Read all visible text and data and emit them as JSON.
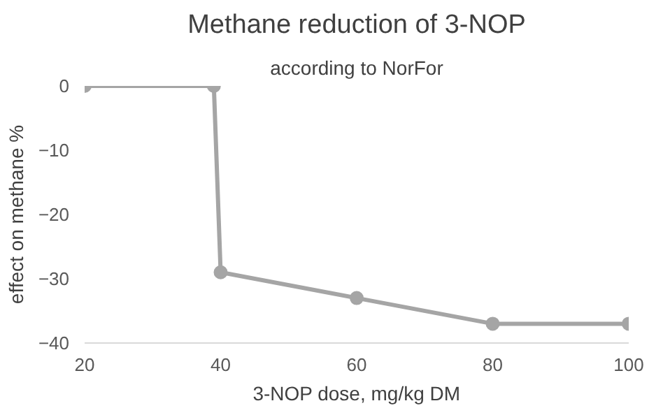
{
  "chart_data": {
    "type": "line",
    "title": "Methane reduction of 3-NOP",
    "subtitle": "according to NorFor",
    "xlabel": "3-NOP dose, mg/kg DM",
    "ylabel": "effect on methane %",
    "x": [
      20,
      39,
      40,
      60,
      80,
      100
    ],
    "series": [
      {
        "color": "#a5a5a5",
        "values": [
          0,
          0,
          -29,
          -33,
          -37,
          -37
        ]
      }
    ],
    "xlim": [
      20,
      100
    ],
    "xticks": [
      20,
      40,
      60,
      80,
      100
    ],
    "ylim": [
      -40,
      0
    ],
    "yticks": [
      0,
      -10,
      -20,
      -30,
      -40
    ],
    "grid": false,
    "marker": "circle",
    "line_style": "solid"
  }
}
